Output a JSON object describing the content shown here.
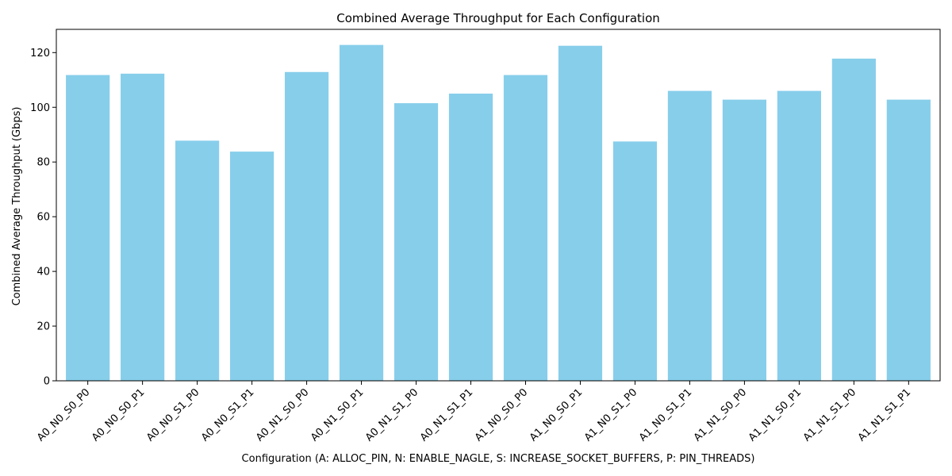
{
  "chart_data": {
    "type": "bar",
    "title": "Combined Average Throughput for Each Configuration",
    "xlabel": "Configuration (A: ALLOC_PIN, N: ENABLE_NAGLE, S: INCREASE_SOCKET_BUFFERS, P: PIN_THREADS)",
    "ylabel": "Combined Average Throughput (Gbps)",
    "categories": [
      "A0_N0_S0_P0",
      "A0_N0_S0_P1",
      "A0_N0_S1_P0",
      "A0_N0_S1_P1",
      "A0_N1_S0_P0",
      "A0_N1_S0_P1",
      "A0_N1_S1_P0",
      "A0_N1_S1_P1",
      "A1_N0_S0_P0",
      "A1_N0_S0_P1",
      "A1_N0_S1_P0",
      "A1_N0_S1_P1",
      "A1_N1_S0_P0",
      "A1_N1_S0_P1",
      "A1_N1_S1_P0",
      "A1_N1_S1_P1"
    ],
    "values": [
      111.8,
      112.3,
      87.8,
      83.8,
      112.9,
      122.8,
      101.5,
      105.0,
      111.8,
      122.5,
      87.5,
      106.0,
      102.8,
      106.0,
      117.8,
      102.8
    ],
    "ylim": [
      0,
      128.5
    ],
    "yticks": [
      0,
      20,
      40,
      60,
      80,
      100,
      120
    ],
    "bar_color": "#87ceeb",
    "grid": false
  }
}
